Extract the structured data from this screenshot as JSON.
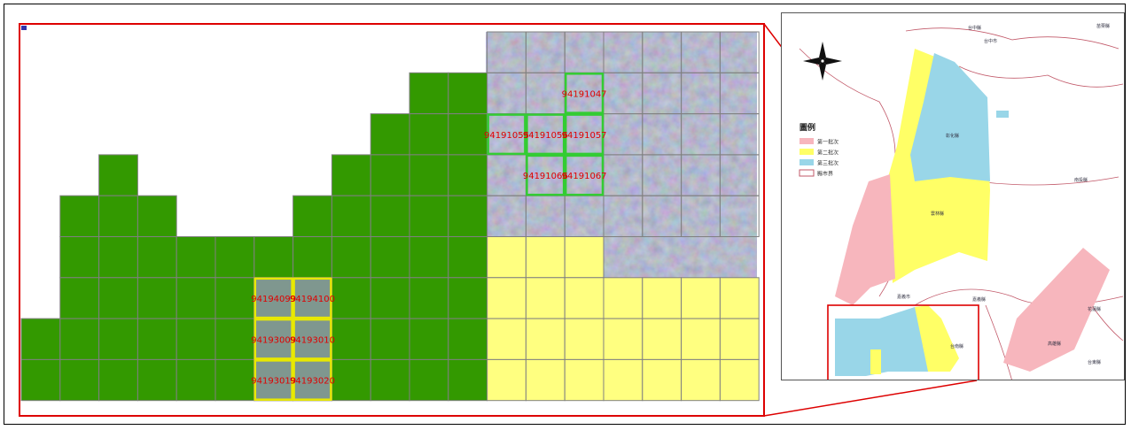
{
  "colors": {
    "tile_green": "#339900",
    "tile_yellow": "#ffff80",
    "grid_line": "#808080",
    "selection_border_green": "#33cc33",
    "selection_border_yellow": "#e8e800",
    "label_red": "#e00000",
    "frame_red": "#dd0000",
    "legend_pink": "#f7b6bd",
    "legend_yellow": "#ffff66",
    "legend_blue": "#99d6e8"
  },
  "tile_labels": [
    "94191047",
    "94191055",
    "94191056",
    "94191057",
    "94191066",
    "94191067",
    "94194099",
    "94194100",
    "94193009",
    "94193010",
    "94193019",
    "94193020"
  ],
  "inset": {
    "legend_title": "圖例",
    "legend_items": [
      {
        "label": "第一批次",
        "color": "#f7b6bd"
      },
      {
        "label": "第二批次",
        "color": "#ffff66"
      },
      {
        "label": "第三批次",
        "color": "#99d6e8"
      },
      {
        "label": "縣市界",
        "color": "#ffffff"
      }
    ],
    "places": [
      "苗栗縣",
      "台中縣",
      "台中市",
      "彰化縣",
      "南投縣",
      "雲林縣",
      "嘉義市",
      "嘉義縣",
      "台南縣",
      "高雄縣",
      "花蓮縣",
      "台東縣"
    ]
  }
}
